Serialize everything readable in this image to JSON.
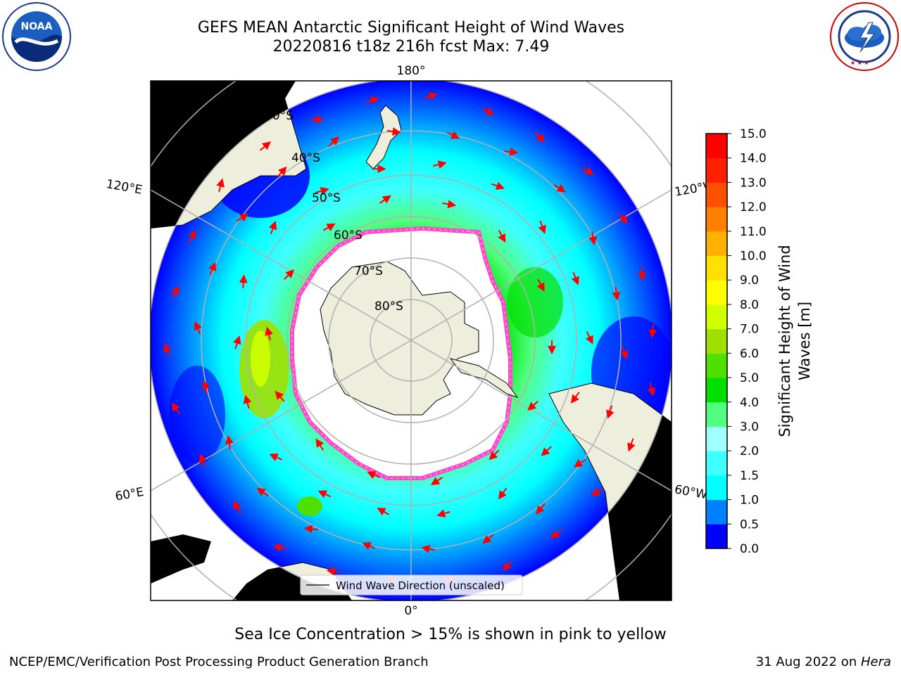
{
  "title": {
    "line1": "GEFS MEAN Antarctic Significant Height of Wind Waves",
    "line2": "20220816 t18z 216h fcst   Max: 7.49"
  },
  "logos": {
    "noaa": {
      "text": "NOAA",
      "ring_text": "NATIONAL OCEANIC AND ATMOSPHERIC ADMINISTRATION · U.S. DEPARTMENT OF COMMERCE"
    },
    "nws": {
      "ring_text": "NATIONAL WEATHER SERVICE"
    }
  },
  "map": {
    "projection": "south-polar stereographic",
    "longitude_labels": {
      "top": "180°",
      "bottom": "0°",
      "left_upper": "120°E",
      "left_lower": "60°E",
      "right_upper": "120°W",
      "right_lower": "60°W"
    },
    "latitude_labels": [
      "30°S",
      "40°S",
      "50°S",
      "60°S",
      "70°S",
      "80°S"
    ],
    "colors": {
      "land": "#eeeedd",
      "ice_edge": "#ff44dd",
      "ice_inner": "#ffd23c",
      "gridline": "#b0b0b0",
      "arrow": "#ff0000"
    },
    "legend": {
      "label": "Wind Wave Direction (unscaled)"
    }
  },
  "colorbar": {
    "label_line1": "Significant Height of Wind",
    "label_line2": "Waves [m]",
    "ticks": [
      "0.0",
      "0.5",
      "1.0",
      "1.5",
      "2.0",
      "3.0",
      "4.0",
      "5.0",
      "6.0",
      "7.0",
      "8.0",
      "9.0",
      "10.0",
      "11.0",
      "12.0",
      "13.0",
      "14.0",
      "15.0"
    ],
    "colors": [
      "#0000ff",
      "#0080ff",
      "#00ffff",
      "#40ffff",
      "#a0ffff",
      "#50ff80",
      "#00e000",
      "#50e000",
      "#a0e000",
      "#d0ff00",
      "#ffff00",
      "#ffe000",
      "#ffb000",
      "#ff8000",
      "#ff5000",
      "#ff2000",
      "#ff0000"
    ]
  },
  "note": "Sea Ice Concentration > 15% is shown in pink to yellow",
  "footer": {
    "left": "NCEP/EMC/Verification Post Processing Product Generation Branch",
    "right_prefix": "31 Aug 2022 on ",
    "right_host": "Hera"
  }
}
